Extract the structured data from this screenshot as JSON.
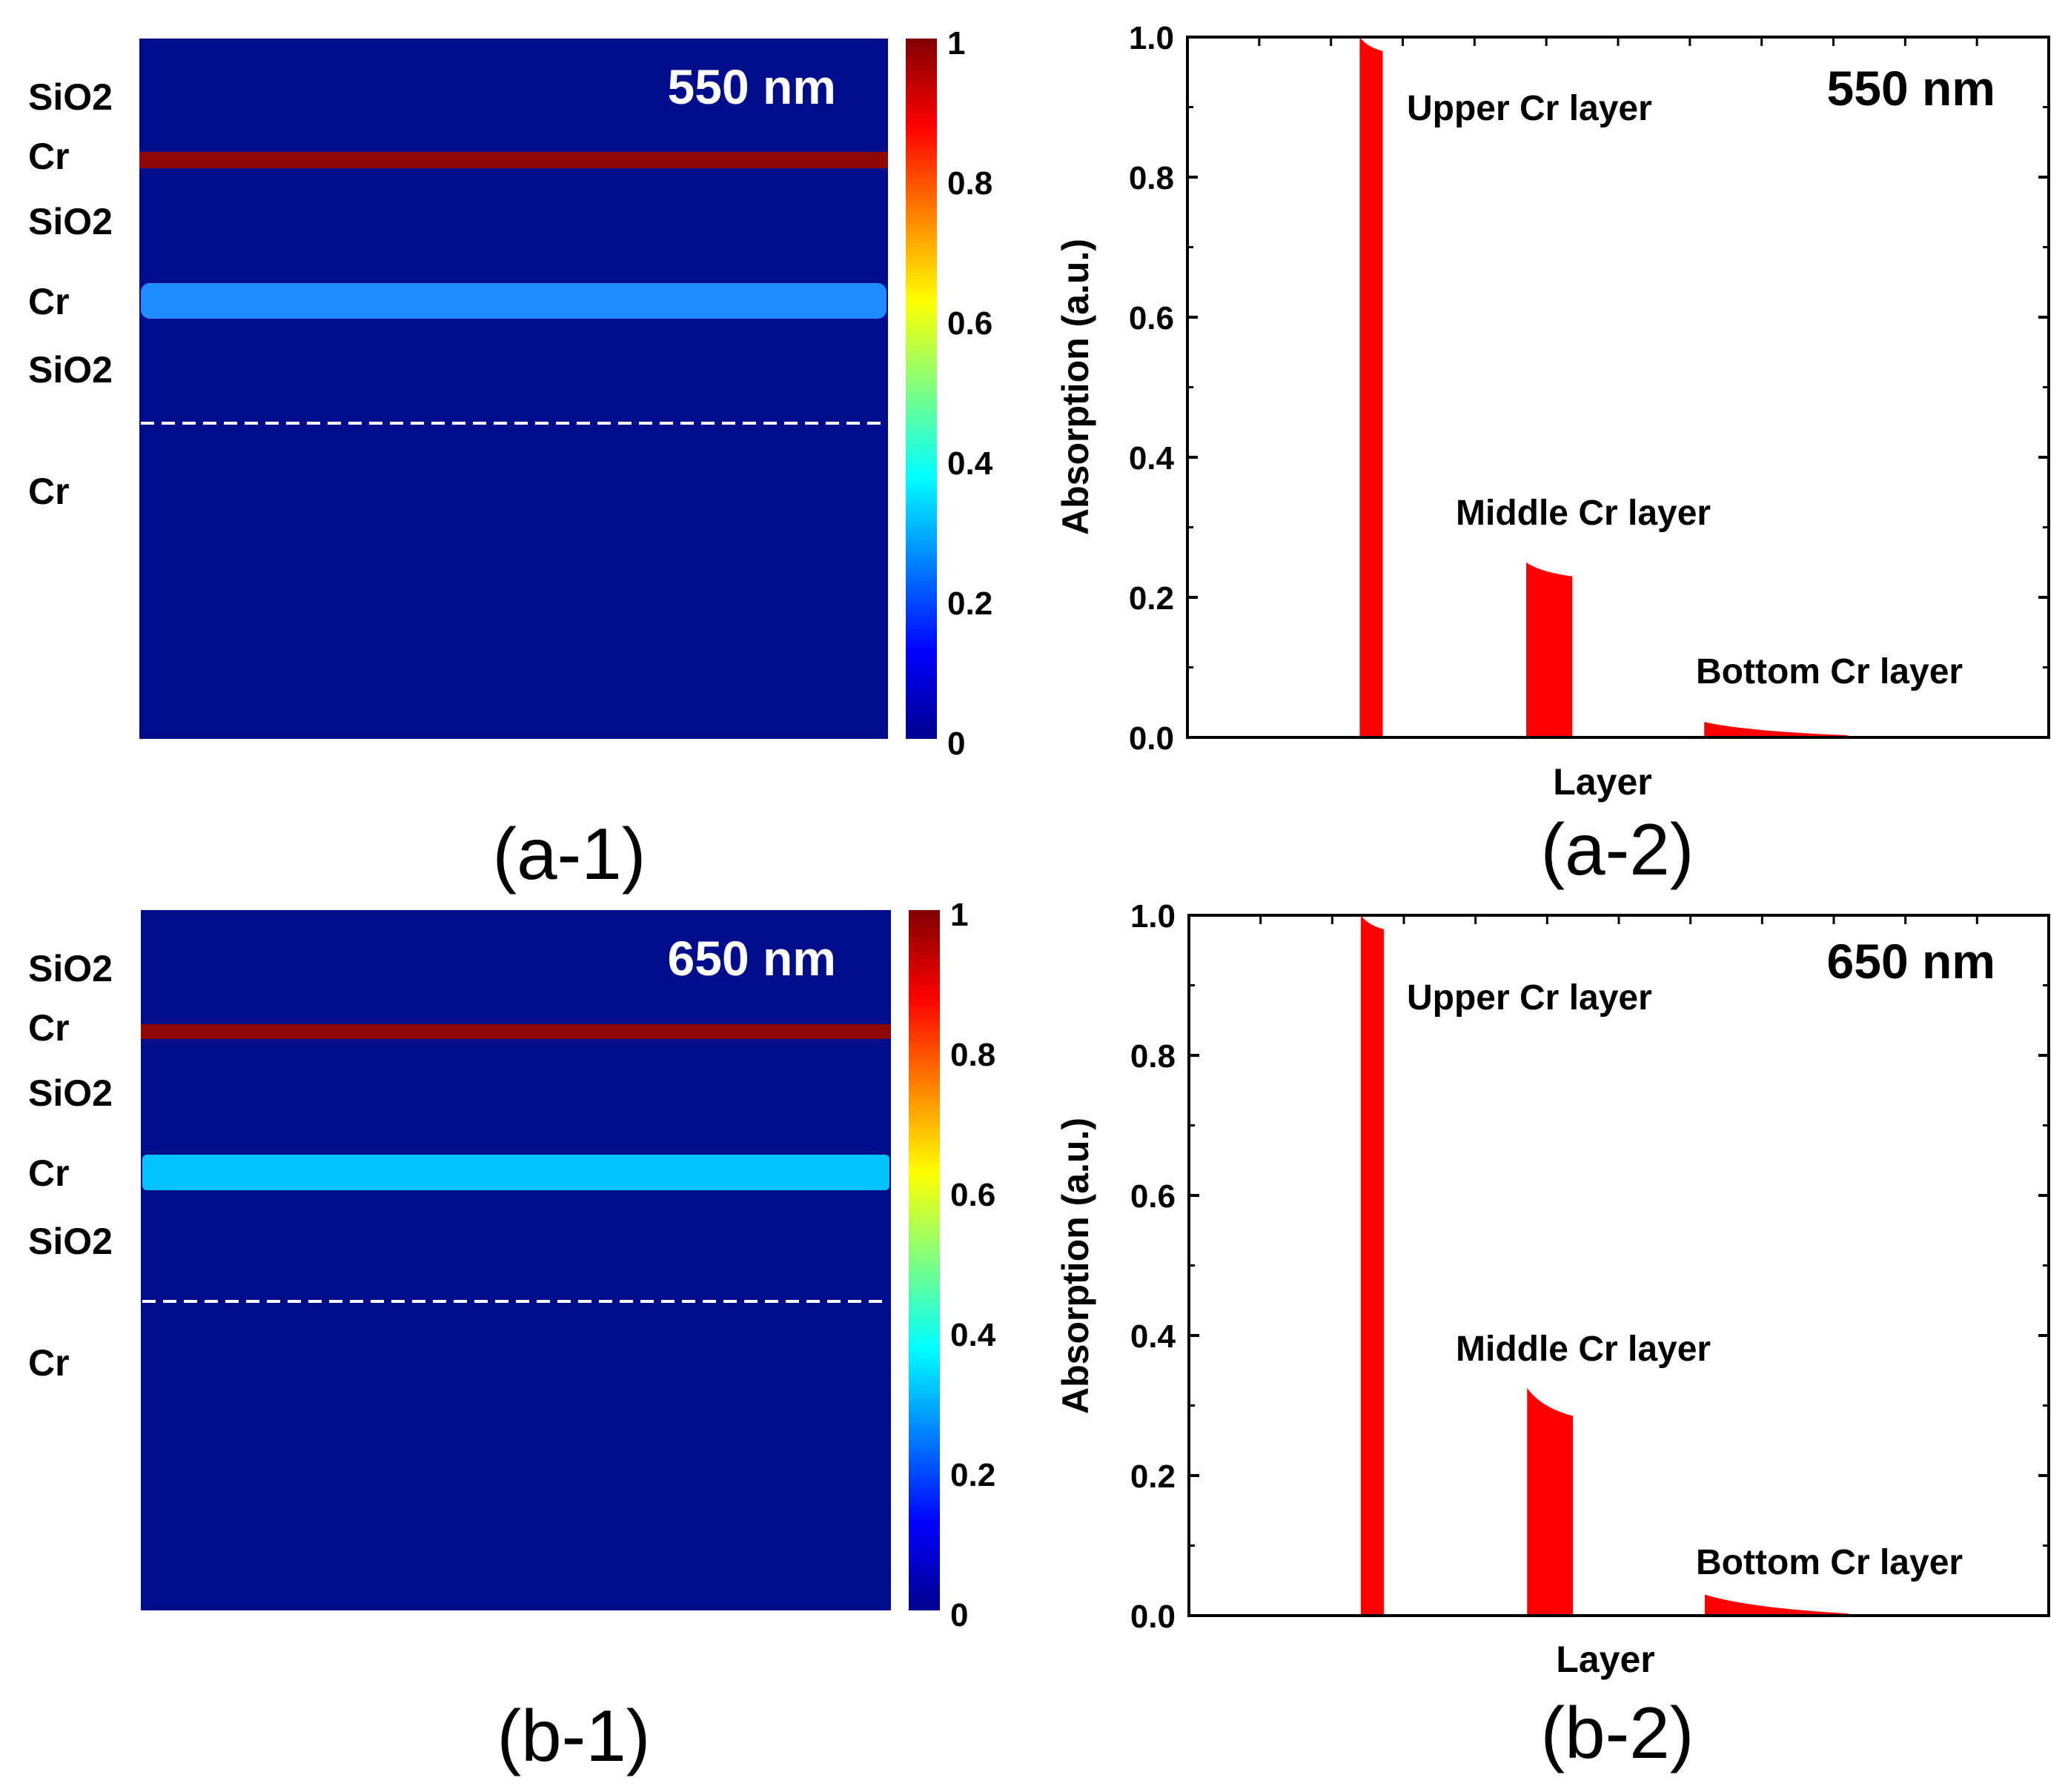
{
  "figure": {
    "colorbar_stops": [
      "#00008f",
      "#0000ff",
      "#0080ff",
      "#00ffff",
      "#80ff80",
      "#ffff00",
      "#ff8000",
      "#ff0000",
      "#800000"
    ],
    "field_background": "#000e8c",
    "bar_color": "#ff0000"
  },
  "chart_data": [
    {
      "id": "a-1",
      "type": "heatmap",
      "panel_label": "(a-1)",
      "annotation": "550 nm",
      "layer_labels": [
        "SiO2",
        "Cr",
        "SiO2",
        "Cr",
        "SiO2",
        "Cr"
      ],
      "bands": [
        {
          "layer": "Upper Cr",
          "value": 1.0,
          "color": "#8e0808"
        },
        {
          "layer": "Middle Cr",
          "value": 0.25,
          "color": "#1f8bff"
        }
      ],
      "interface_line": "dashed",
      "colorbar": {
        "range": [
          0,
          1
        ],
        "ticks": [
          "0",
          "0.2",
          "0.4",
          "0.6",
          "0.8",
          "1"
        ]
      }
    },
    {
      "id": "a-2",
      "type": "area",
      "panel_label": "(a-2)",
      "annotation": "550 nm",
      "xlabel": "Layer",
      "ylabel": "Absorption (a.u.)",
      "ylim": [
        0,
        1.0
      ],
      "yticks": [
        "0.0",
        "0.2",
        "0.4",
        "0.6",
        "0.8",
        "1.0"
      ],
      "series": [
        {
          "name": "Upper Cr layer",
          "x": [
            0.3,
            0.34
          ],
          "y": [
            1.0,
            0.98
          ]
        },
        {
          "name": "Middle Cr layer",
          "x": [
            0.59,
            0.67
          ],
          "y": [
            0.25,
            0.23
          ]
        },
        {
          "name": "Bottom Cr layer",
          "x": [
            0.9,
            1.15
          ],
          "y": [
            0.022,
            0.003
          ]
        }
      ]
    },
    {
      "id": "b-1",
      "type": "heatmap",
      "panel_label": "(b-1)",
      "annotation": "650 nm",
      "layer_labels": [
        "SiO2",
        "Cr",
        "SiO2",
        "Cr",
        "SiO2",
        "Cr"
      ],
      "bands": [
        {
          "layer": "Upper Cr",
          "value": 1.0,
          "color": "#8e0808"
        },
        {
          "layer": "Middle Cr",
          "value": 0.33,
          "color": "#00c2ff"
        }
      ],
      "interface_line": "dashed",
      "colorbar": {
        "range": [
          0,
          1
        ],
        "ticks": [
          "0",
          "0.2",
          "0.4",
          "0.6",
          "0.8",
          "1"
        ]
      }
    },
    {
      "id": "b-2",
      "type": "area",
      "panel_label": "(b-2)",
      "annotation": "650 nm",
      "xlabel": "Layer",
      "ylabel": "Absorption (a.u.)",
      "ylim": [
        0,
        1.0
      ],
      "yticks": [
        "0.0",
        "0.2",
        "0.4",
        "0.6",
        "0.8",
        "1.0"
      ],
      "series": [
        {
          "name": "Upper Cr layer",
          "x": [
            0.3,
            0.34
          ],
          "y": [
            1.0,
            0.98
          ]
        },
        {
          "name": "Middle Cr layer",
          "x": [
            0.59,
            0.67
          ],
          "y": [
            0.325,
            0.285
          ]
        },
        {
          "name": "Bottom Cr layer",
          "x": [
            0.9,
            1.15
          ],
          "y": [
            0.03,
            0.003
          ]
        }
      ]
    }
  ]
}
